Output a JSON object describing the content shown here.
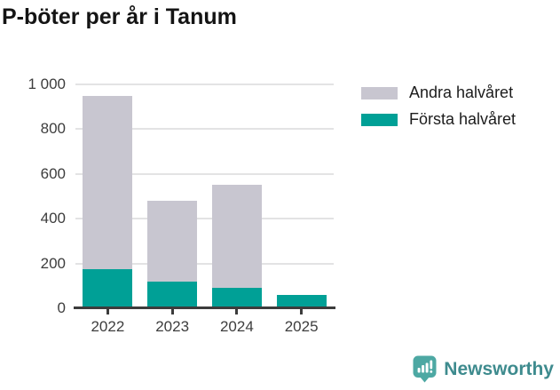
{
  "title": "P-böter per år i Tanum",
  "chart_data": {
    "type": "bar",
    "stacked": true,
    "title": "P-böter per år i Tanum",
    "categories": [
      "2022",
      "2023",
      "2024",
      "2025"
    ],
    "series": [
      {
        "name": "Första halvåret",
        "color": "#00a096",
        "values": [
          175,
          120,
          90,
          60
        ]
      },
      {
        "name": "Andra halvåret",
        "color": "#c8c6d0",
        "values": [
          775,
          360,
          460,
          0
        ]
      }
    ],
    "xlabel": "",
    "ylabel": "",
    "ylim": [
      0,
      1000
    ],
    "yticks": [
      0,
      200,
      400,
      600,
      800,
      1000
    ],
    "ytick_labels": [
      "0",
      "200",
      "400",
      "600",
      "800",
      "1 000"
    ],
    "grid": "horizontal",
    "legend_position": "top-right"
  },
  "legend": {
    "items": [
      {
        "label": "Andra halvåret",
        "color": "#c8c6d0"
      },
      {
        "label": "Första halvåret",
        "color": "#00a096"
      }
    ]
  },
  "branding": {
    "logo_text": "Newsworthy",
    "logo_icon": "newsworthy-chart-bubble-icon",
    "icon_color": "#4da8a3",
    "text_color": "#3e8b8e"
  },
  "colors": {
    "first_half_teal": "#00a096",
    "second_half_gray": "#c8c6d0",
    "gridline": "#e3e3e4",
    "axis": "#3c3c3c",
    "tick_label": "#3d3d3d",
    "title_text": "#141414"
  }
}
